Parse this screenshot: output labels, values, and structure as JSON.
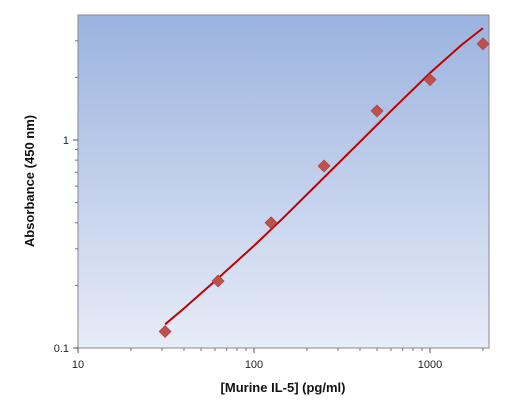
{
  "chart_data": {
    "type": "scatter",
    "title": "",
    "xlabel": "[Murine IL-5] (pg/ml)",
    "ylabel": "Absorbance (450 nm)",
    "xscale": "log",
    "yscale": "log",
    "xlim": [
      20,
      2000
    ],
    "ylim": [
      0.1,
      3.5
    ],
    "xticks": [
      {
        "value": 10,
        "label": "10"
      },
      {
        "value": 100,
        "label": "100"
      },
      {
        "value": 1000,
        "label": "1000"
      }
    ],
    "yticks": [
      {
        "value": 0.1,
        "label": "0.1"
      },
      {
        "value": 1,
        "label": "1"
      }
    ],
    "grid": false,
    "series": [
      {
        "kind": "points",
        "marker": "diamond",
        "color": "#c0504d",
        "x": [
          31.25,
          62.5,
          125,
          250,
          500,
          1000,
          2000
        ],
        "y": [
          0.12,
          0.21,
          0.4,
          0.75,
          1.38,
          1.95,
          2.9
        ]
      },
      {
        "kind": "fit-line",
        "color": "#c00000",
        "x": [
          31.25,
          40,
          60,
          100,
          150,
          250,
          400,
          600,
          1000,
          1500,
          2000
        ],
        "y": [
          0.13,
          0.155,
          0.21,
          0.31,
          0.43,
          0.66,
          0.98,
          1.38,
          2.1,
          2.85,
          3.45
        ]
      }
    ],
    "colors": {
      "plot_bg_top": "#9bb3df",
      "plot_bg_bottom": "#e7ecf8"
    }
  }
}
